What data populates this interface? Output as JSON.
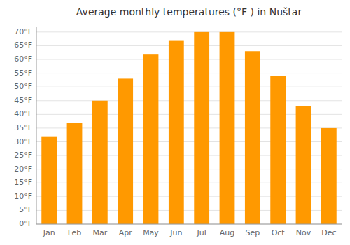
{
  "chart_data": {
    "type": "bar",
    "title": "Average monthly temperatures (°F ) in Nuštar",
    "categories": [
      "Jan",
      "Feb",
      "Mar",
      "Apr",
      "May",
      "Jun",
      "Jul",
      "Aug",
      "Sep",
      "Oct",
      "Nov",
      "Dec"
    ],
    "values": [
      32,
      37,
      45,
      53,
      62,
      67,
      70,
      70,
      63,
      54,
      43,
      35
    ],
    "color": "#FF9900",
    "ylim": [
      0,
      72
    ],
    "yticks": [
      {
        "value": 0,
        "label": "0°F"
      },
      {
        "value": 5,
        "label": "5°F"
      },
      {
        "value": 10,
        "label": "10°F"
      },
      {
        "value": 15,
        "label": "15°F"
      },
      {
        "value": 20,
        "label": "20°F"
      },
      {
        "value": 25,
        "label": "25°F"
      },
      {
        "value": 30,
        "label": "30°F"
      },
      {
        "value": 35,
        "label": "35°F"
      },
      {
        "value": 40,
        "label": "40°F"
      },
      {
        "value": 45,
        "label": "45°F"
      },
      {
        "value": 50,
        "label": "50°F"
      },
      {
        "value": 55,
        "label": "55°F"
      },
      {
        "value": 60,
        "label": "60°F"
      },
      {
        "value": 65,
        "label": "65°F"
      },
      {
        "value": 70,
        "label": "70°F"
      }
    ],
    "grid": true
  }
}
